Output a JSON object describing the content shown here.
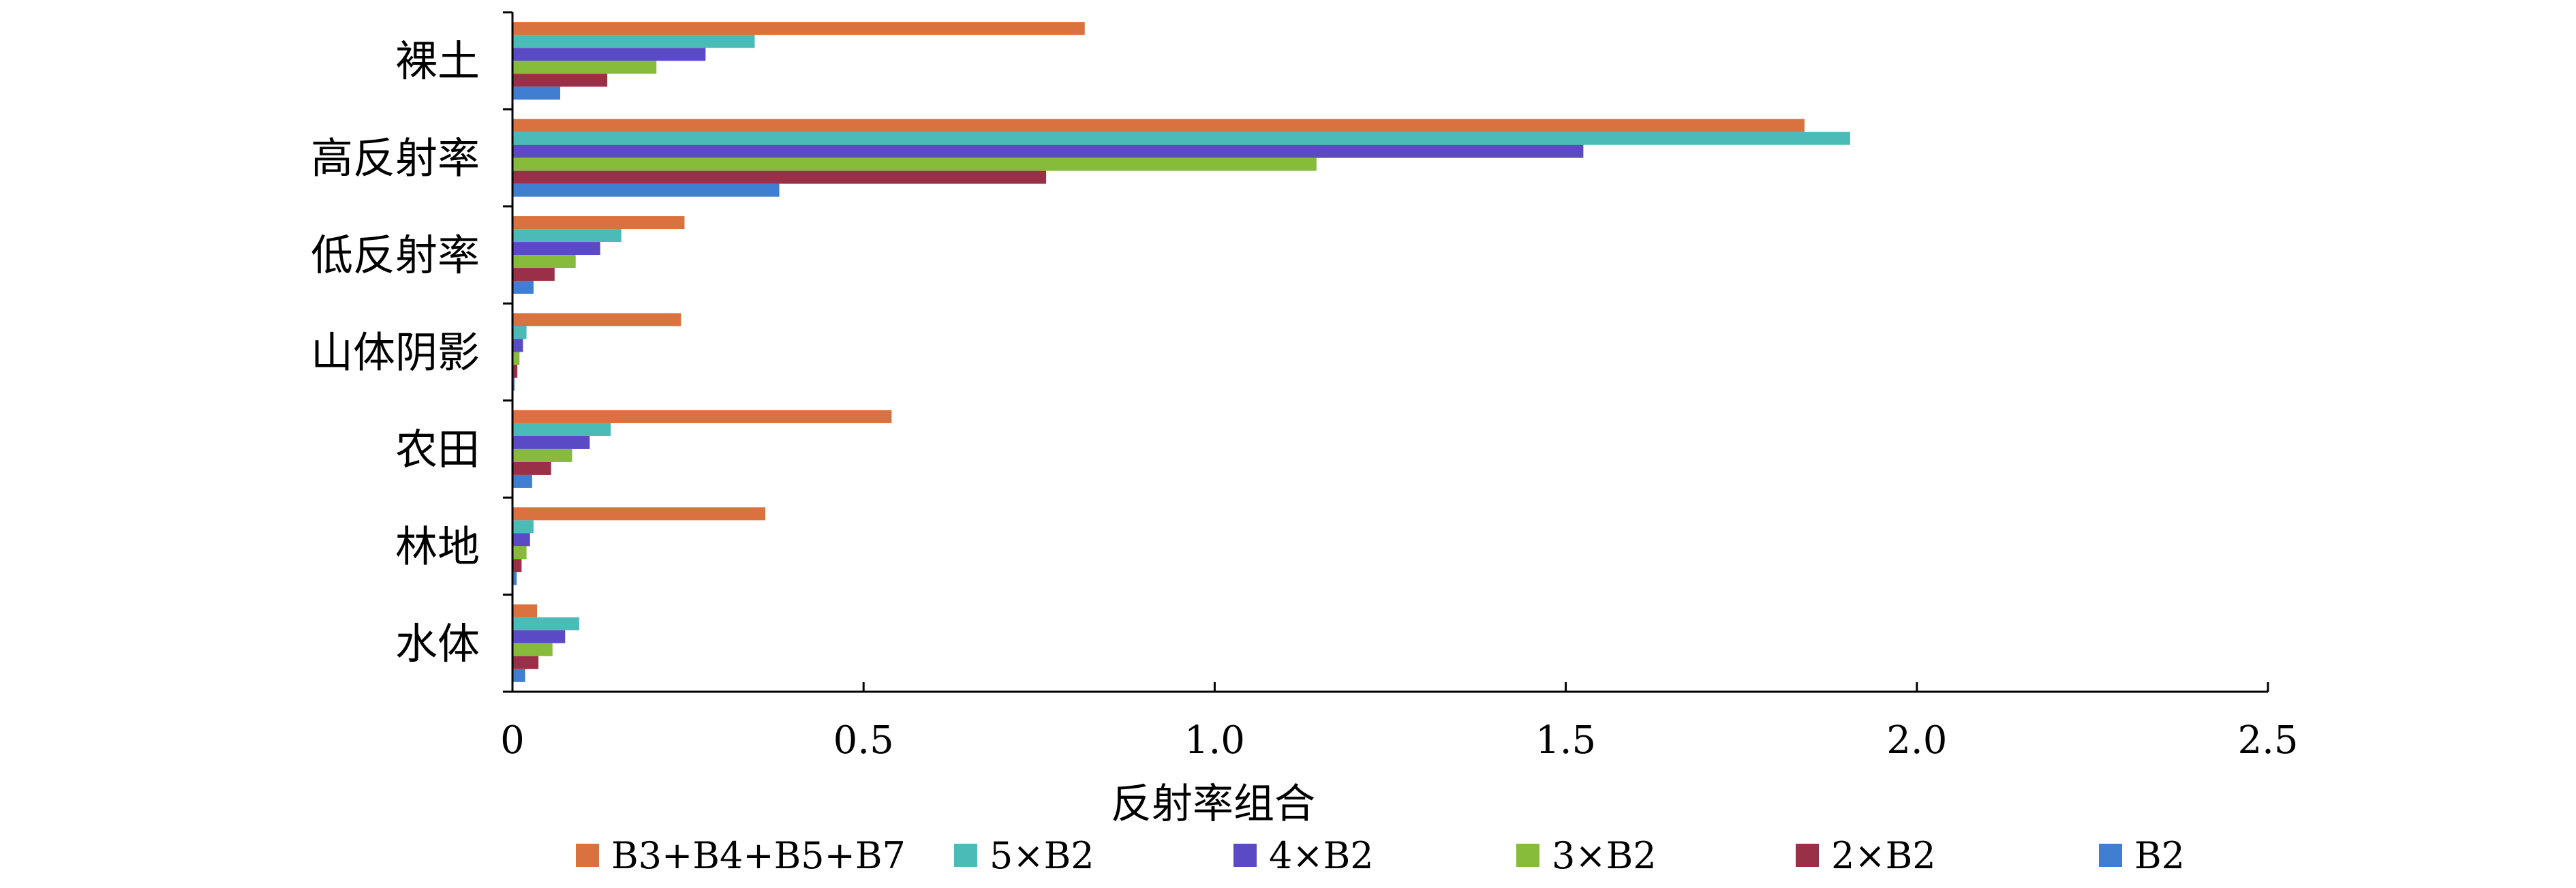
{
  "chart_data": {
    "type": "bar",
    "orientation": "horizontal",
    "title": "",
    "xlabel": "反射率组合",
    "ylabel": "",
    "xlim": [
      0,
      2.5
    ],
    "xticks": [
      "0",
      "0.5",
      "1.0",
      "1.5",
      "2.0",
      "2.5"
    ],
    "grid": false,
    "legend_position": "bottom",
    "categories": [
      "裸土",
      "高反射率",
      "低反射率",
      "山体阴影",
      "农田",
      "林地",
      "水体"
    ],
    "series": [
      {
        "name": "B3+B4+B5+B7",
        "color": "#D9723E",
        "values": [
          0.815,
          1.84,
          0.245,
          0.24,
          0.54,
          0.36,
          0.035
        ]
      },
      {
        "name": "5×B2",
        "color": "#4BBBB8",
        "values": [
          0.345,
          1.905,
          0.155,
          0.02,
          0.14,
          0.03,
          0.095
        ]
      },
      {
        "name": "4×B2",
        "color": "#5A4AC4",
        "values": [
          0.275,
          1.525,
          0.125,
          0.015,
          0.11,
          0.025,
          0.075
        ]
      },
      {
        "name": "3×B2",
        "color": "#86BC3A",
        "values": [
          0.205,
          1.145,
          0.09,
          0.01,
          0.085,
          0.02,
          0.057
        ]
      },
      {
        "name": "2×B2",
        "color": "#9A3048",
        "values": [
          0.135,
          0.76,
          0.06,
          0.007,
          0.055,
          0.013,
          0.037
        ]
      },
      {
        "name": "B2",
        "color": "#3F7ED0",
        "values": [
          0.068,
          0.38,
          0.03,
          0.003,
          0.028,
          0.006,
          0.018
        ]
      }
    ]
  }
}
